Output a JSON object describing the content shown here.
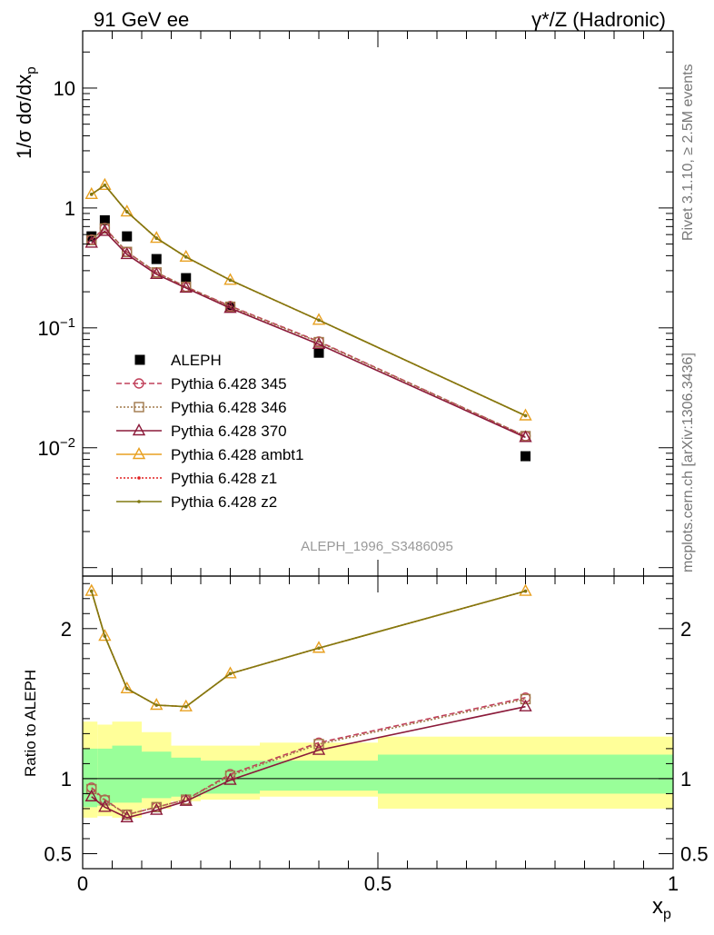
{
  "header": {
    "left": "91 GeV ee",
    "right": "γ*/Z (Hadronic)"
  },
  "side_labels": {
    "rivet": "Rivet 3.1.10, ≥ 2.5M events",
    "mcplots": "mcplots.cern.ch [arXiv:1306.3436]"
  },
  "analysis_tag": "ALEPH_1996_S3486095",
  "colors": {
    "aleph": "#000000",
    "p345": "#c0405a",
    "p346": "#a0784a",
    "p370": "#8b1a3a",
    "ambt1": "#e8a020",
    "z1": "#e02020",
    "z2": "#807a10",
    "band_inner": "#99ff99",
    "band_outer": "#ffff99"
  },
  "chart_data": [
    {
      "type": "scatter",
      "panel": "main",
      "ylabel": "1/σ dσ/dx_p",
      "yscale": "log",
      "xlim": [
        0,
        1
      ],
      "ylim": [
        0.00085,
        30
      ],
      "ytick_labels": [
        "10^-2",
        "10^-1",
        "1",
        "10"
      ],
      "x": [
        0.015,
        0.0375,
        0.075,
        0.125,
        0.175,
        0.25,
        0.4,
        0.75
      ],
      "series": [
        {
          "name": "ALEPH",
          "key": "aleph",
          "values": [
            0.58,
            0.79,
            0.58,
            0.375,
            0.26,
            0.148,
            0.062,
            0.0085
          ]
        },
        {
          "name": "Pythia 6.428 345",
          "key": "p345",
          "values": [
            0.545,
            0.68,
            0.43,
            0.29,
            0.22,
            0.152,
            0.077,
            0.0125
          ]
        },
        {
          "name": "Pythia 6.428 346",
          "key": "p346",
          "values": [
            0.54,
            0.675,
            0.43,
            0.29,
            0.22,
            0.15,
            0.076,
            0.0125
          ]
        },
        {
          "name": "Pythia 6.428 370",
          "key": "p370",
          "values": [
            0.51,
            0.64,
            0.41,
            0.28,
            0.215,
            0.146,
            0.073,
            0.0122
          ]
        },
        {
          "name": "Pythia 6.428 ambt1",
          "key": "ambt1",
          "values": [
            1.3,
            1.55,
            0.93,
            0.56,
            0.39,
            0.25,
            0.116,
            0.0185
          ]
        },
        {
          "name": "Pythia 6.428 z1",
          "key": "z1",
          "values": [
            1.3,
            1.55,
            0.93,
            0.56,
            0.39,
            0.25,
            0.116,
            0.0185
          ]
        },
        {
          "name": "Pythia 6.428 z2",
          "key": "z2",
          "values": [
            1.3,
            1.55,
            0.93,
            0.56,
            0.39,
            0.25,
            0.116,
            0.0185
          ]
        }
      ]
    },
    {
      "type": "line",
      "panel": "ratio",
      "ylabel": "Ratio to ALEPH",
      "xlabel": "x_p",
      "xlim": [
        0,
        1
      ],
      "ylim": [
        0.4,
        2.35
      ],
      "yticks": [
        0.5,
        1,
        2
      ],
      "ytick_labels": [
        "0.5",
        "1",
        "2"
      ],
      "xticks": [
        0,
        0.5,
        1
      ],
      "xtick_labels": [
        "0",
        "0.5",
        "1"
      ],
      "x": [
        0.015,
        0.0375,
        0.075,
        0.125,
        0.175,
        0.25,
        0.4,
        0.75
      ],
      "series": [
        {
          "name": "Pythia 6.428 345",
          "key": "p345",
          "values": [
            0.94,
            0.86,
            0.76,
            0.81,
            0.86,
            1.03,
            1.24,
            1.54
          ]
        },
        {
          "name": "Pythia 6.428 346",
          "key": "p346",
          "values": [
            0.93,
            0.855,
            0.76,
            0.81,
            0.86,
            1.02,
            1.23,
            1.53
          ]
        },
        {
          "name": "Pythia 6.428 370",
          "key": "p370",
          "values": [
            0.88,
            0.81,
            0.74,
            0.79,
            0.85,
            0.99,
            1.19,
            1.48
          ]
        },
        {
          "name": "Pythia 6.428 ambt1",
          "key": "ambt1",
          "values": [
            2.25,
            1.95,
            1.6,
            1.49,
            1.48,
            1.7,
            1.87,
            2.25
          ]
        },
        {
          "name": "Pythia 6.428 z1",
          "key": "z1",
          "values": [
            2.25,
            1.95,
            1.6,
            1.49,
            1.48,
            1.7,
            1.87,
            2.25
          ]
        },
        {
          "name": "Pythia 6.428 z2",
          "key": "z2",
          "values": [
            2.25,
            1.95,
            1.6,
            1.49,
            1.48,
            1.7,
            1.87,
            2.25
          ]
        }
      ],
      "uncertainty_bands": {
        "edges": [
          0,
          0.025,
          0.05,
          0.1,
          0.15,
          0.2,
          0.3,
          0.5,
          1.0
        ],
        "inner": [
          [
            0.81,
            1.2
          ],
          [
            0.82,
            1.2
          ],
          [
            0.84,
            1.22
          ],
          [
            0.87,
            1.18
          ],
          [
            0.88,
            1.14
          ],
          [
            0.9,
            1.12
          ],
          [
            0.92,
            1.12
          ],
          [
            0.9,
            1.16
          ]
        ],
        "outer": [
          [
            0.74,
            1.38
          ],
          [
            0.75,
            1.36
          ],
          [
            0.74,
            1.38
          ],
          [
            0.8,
            1.31
          ],
          [
            0.85,
            1.22
          ],
          [
            0.86,
            1.22
          ],
          [
            0.88,
            1.24
          ],
          [
            0.8,
            1.28
          ]
        ]
      }
    }
  ]
}
